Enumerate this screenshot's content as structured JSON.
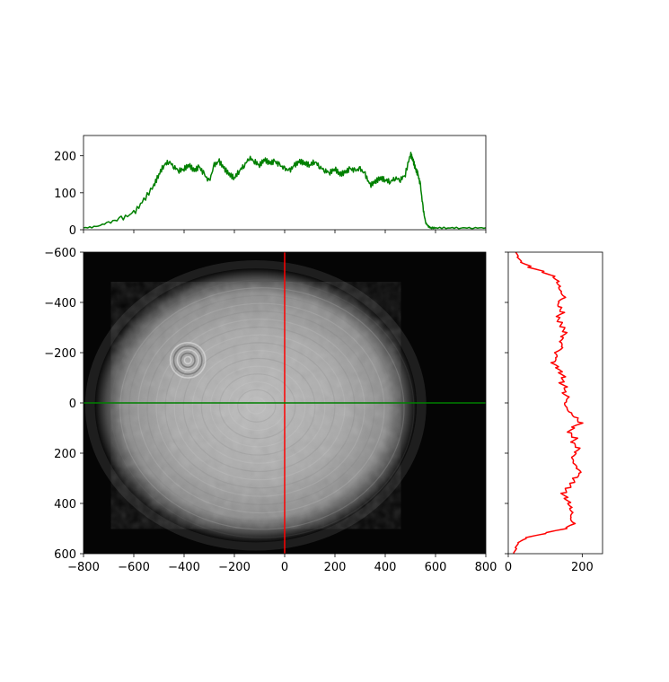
{
  "figure": {
    "background": "#ffffff"
  },
  "chart_data": [
    {
      "panel": "main-image",
      "type": "heatmap",
      "colormap": "gray",
      "x_range": [
        -800,
        800
      ],
      "y_range": [
        -600,
        600
      ],
      "y_inverted": true,
      "x_ticks": [
        -800,
        -600,
        -400,
        -200,
        0,
        200,
        400,
        600,
        800
      ],
      "x_tick_labels": [
        "−800",
        "−600",
        "−400",
        "−200",
        "0",
        "200",
        "400",
        "600",
        "800"
      ],
      "y_ticks": [
        -600,
        -400,
        -200,
        0,
        200,
        400,
        600
      ],
      "y_tick_labels": [
        "−600",
        "−400",
        "−200",
        "0",
        "200",
        "400",
        "600"
      ],
      "beam": {
        "center_x": -115,
        "center_y": 10,
        "radius_x": 640,
        "radius_y": 545,
        "peak_intensity": 190
      },
      "ring_feature": {
        "x": -385,
        "y": -170,
        "radius": 70
      },
      "crosshair": {
        "vertical_x": 0,
        "vertical_color": "#ff0000",
        "horizontal_y": 0,
        "horizontal_color": "#008000"
      },
      "title": "",
      "xlabel": "",
      "ylabel": ""
    },
    {
      "panel": "top-profile",
      "type": "line",
      "series": [
        {
          "color": "#008000",
          "x": [
            -800,
            -750,
            -700,
            -650,
            -600,
            -560,
            -520,
            -500,
            -480,
            -460,
            -440,
            -420,
            -400,
            -380,
            -360,
            -340,
            -320,
            -300,
            -280,
            -260,
            -240,
            -220,
            -200,
            -180,
            -160,
            -140,
            -120,
            -100,
            -80,
            -60,
            -40,
            -20,
            0,
            20,
            40,
            60,
            80,
            100,
            120,
            140,
            160,
            180,
            200,
            220,
            240,
            260,
            280,
            300,
            320,
            340,
            360,
            380,
            400,
            420,
            440,
            460,
            480,
            500,
            510,
            520,
            530,
            540,
            550,
            560,
            570,
            580,
            600,
            650,
            700,
            750,
            800
          ],
          "values": [
            5,
            8,
            20,
            30,
            45,
            80,
            120,
            150,
            175,
            185,
            170,
            160,
            165,
            175,
            160,
            170,
            150,
            130,
            175,
            185,
            165,
            150,
            140,
            160,
            175,
            195,
            185,
            175,
            190,
            180,
            185,
            175,
            165,
            160,
            175,
            185,
            180,
            175,
            185,
            170,
            160,
            155,
            165,
            150,
            155,
            165,
            160,
            165,
            150,
            120,
            130,
            140,
            135,
            130,
            140,
            135,
            150,
            205,
            190,
            165,
            150,
            120,
            60,
            20,
            10,
            5,
            5,
            5,
            5,
            5,
            5
          ]
        }
      ],
      "x_range": [
        -800,
        800
      ],
      "ylim": [
        0,
        255
      ],
      "y_ticks": [
        0,
        100,
        200
      ],
      "y_tick_labels": [
        "0",
        "100",
        "200"
      ],
      "title": "",
      "xlabel": "",
      "ylabel": ""
    },
    {
      "panel": "right-profile",
      "type": "line",
      "orientation": "vertical",
      "series": [
        {
          "color": "#ff0000",
          "y": [
            -600,
            -580,
            -560,
            -540,
            -520,
            -500,
            -480,
            -460,
            -440,
            -420,
            -400,
            -380,
            -360,
            -340,
            -320,
            -300,
            -280,
            -260,
            -240,
            -220,
            -200,
            -180,
            -160,
            -140,
            -120,
            -100,
            -80,
            -60,
            -40,
            -20,
            0,
            20,
            40,
            60,
            80,
            100,
            120,
            140,
            160,
            180,
            200,
            220,
            240,
            260,
            280,
            300,
            320,
            340,
            360,
            380,
            400,
            420,
            440,
            460,
            480,
            500,
            520,
            540,
            560,
            580,
            600
          ],
          "values": [
            20,
            25,
            35,
            60,
            100,
            130,
            140,
            145,
            150,
            160,
            140,
            145,
            150,
            135,
            140,
            145,
            150,
            140,
            135,
            140,
            120,
            125,
            115,
            130,
            140,
            150,
            145,
            160,
            155,
            170,
            160,
            165,
            175,
            190,
            200,
            175,
            165,
            180,
            170,
            185,
            175,
            165,
            170,
            180,
            190,
            175,
            170,
            160,
            150,
            160,
            170,
            175,
            180,
            175,
            185,
            160,
            100,
            45,
            25,
            20,
            15
          ]
        }
      ],
      "y_range": [
        -600,
        600
      ],
      "y_inverted": true,
      "xlim": [
        0,
        255
      ],
      "x_ticks": [
        0,
        200
      ],
      "x_tick_labels": [
        "0",
        "200"
      ],
      "title": "",
      "xlabel": "",
      "ylabel": ""
    }
  ]
}
